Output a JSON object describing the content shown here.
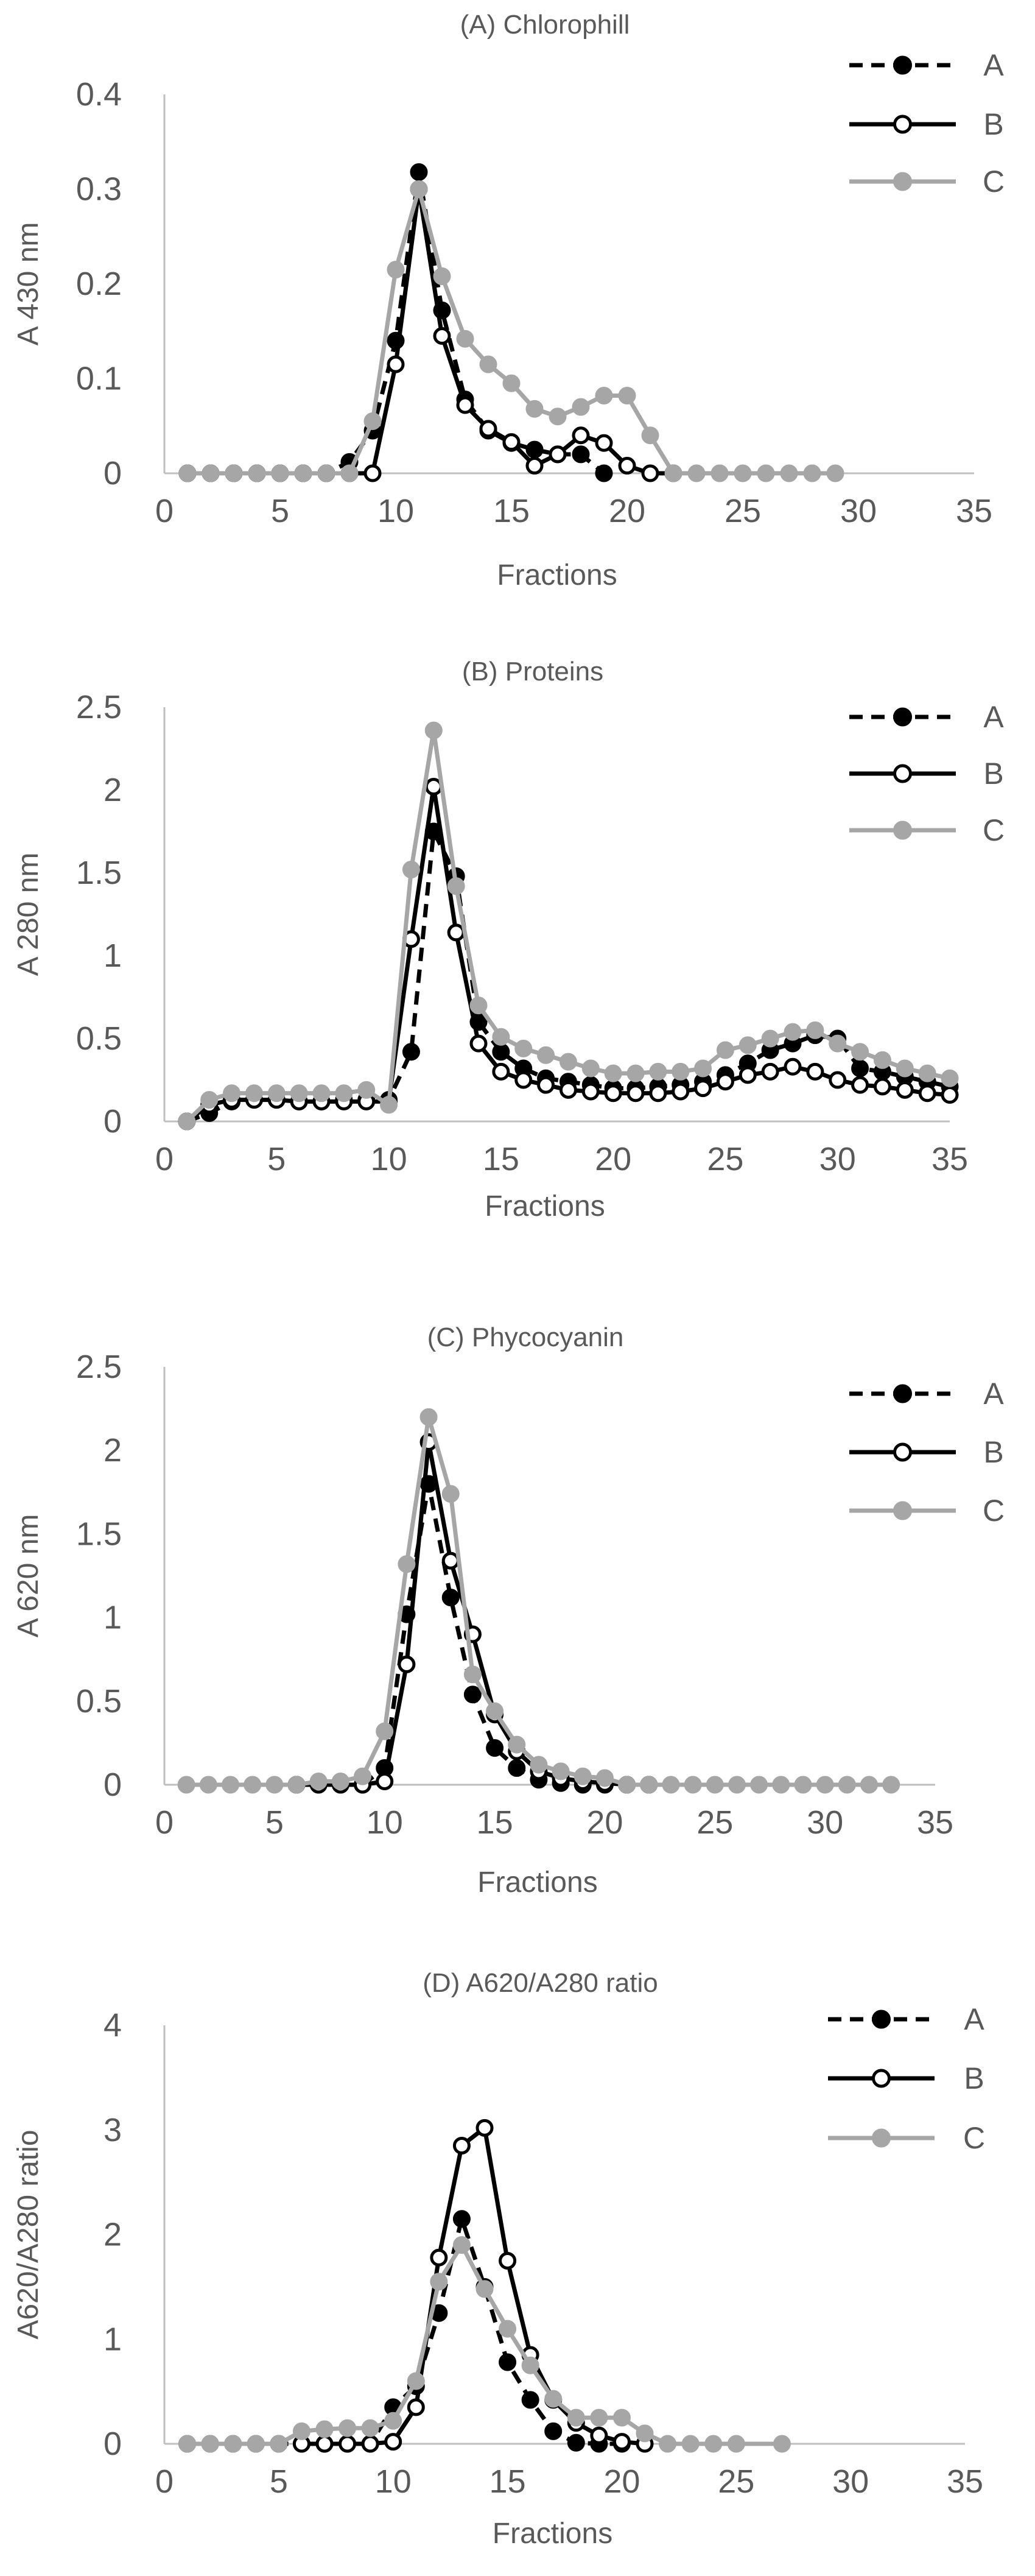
{
  "chart_data": [
    {
      "type": "line",
      "title": "(A) Chlorophill",
      "xlabel": "Fractions",
      "ylabel": "A 430 nm",
      "xlim": [
        0,
        35
      ],
      "ylim": [
        0,
        0.4
      ],
      "x_ticks": [
        "0",
        "5",
        "10",
        "15",
        "20",
        "25",
        "30",
        "35"
      ],
      "y_ticks": [
        "0",
        "0.1",
        "0.2",
        "0.3",
        "0.4"
      ],
      "grid": false,
      "legend_position": "top-right",
      "series": [
        {
          "name": "A",
          "color": "#000000",
          "dash": "dashed",
          "marker": "filled",
          "x": [
            1,
            2,
            3,
            4,
            5,
            6,
            7,
            8,
            9,
            10,
            11,
            12,
            13,
            14,
            15,
            16,
            17,
            18,
            19
          ],
          "y": [
            0,
            0,
            0,
            0,
            0,
            0,
            0,
            0.012,
            0.045,
            0.14,
            0.318,
            0.172,
            0.078,
            0.045,
            0.032,
            0.025,
            0.02,
            0.02,
            0
          ]
        },
        {
          "name": "B",
          "color": "#000000",
          "dash": "solid",
          "marker": "open",
          "x": [
            1,
            2,
            3,
            4,
            5,
            6,
            7,
            8,
            9,
            10,
            11,
            12,
            13,
            14,
            15,
            16,
            17,
            18,
            19,
            20,
            21,
            22
          ],
          "y": [
            0,
            0,
            0,
            0,
            0,
            0,
            0,
            0,
            0,
            0.115,
            0.3,
            0.145,
            0.072,
            0.047,
            0.033,
            0.008,
            0.02,
            0.04,
            0.032,
            0.008,
            0,
            0
          ]
        },
        {
          "name": "C",
          "color": "#a6a6a6",
          "dash": "solid",
          "marker": "filled",
          "x": [
            1,
            2,
            3,
            4,
            5,
            6,
            7,
            8,
            9,
            10,
            11,
            12,
            13,
            14,
            15,
            16,
            17,
            18,
            19,
            20,
            21,
            22,
            23,
            24,
            25,
            26,
            27,
            28,
            29
          ],
          "y": [
            0,
            0,
            0,
            0,
            0,
            0,
            0,
            0,
            0.055,
            0.215,
            0.3,
            0.208,
            0.142,
            0.115,
            0.095,
            0.068,
            0.06,
            0.07,
            0.082,
            0.082,
            0.04,
            0,
            0,
            0,
            0,
            0,
            0,
            0,
            0
          ]
        }
      ]
    },
    {
      "type": "line",
      "title": "(B) Proteins",
      "xlabel": "Fractions",
      "ylabel": "A 280 nm",
      "xlim": [
        0,
        35
      ],
      "ylim": [
        0,
        2.5
      ],
      "x_ticks": [
        "0",
        "5",
        "10",
        "15",
        "20",
        "25",
        "30",
        "35"
      ],
      "y_ticks": [
        "0",
        "0.5",
        "1",
        "1.5",
        "2",
        "2.5"
      ],
      "grid": false,
      "legend_position": "top-right",
      "series": [
        {
          "name": "A",
          "color": "#000000",
          "dash": "dashed",
          "marker": "filled",
          "x": [
            1,
            2,
            3,
            4,
            5,
            6,
            7,
            8,
            9,
            10,
            11,
            12,
            13,
            14,
            15,
            16,
            17,
            18,
            19,
            20,
            21,
            22,
            23,
            24,
            25,
            26,
            27,
            28,
            29,
            30,
            31,
            32,
            33,
            34,
            35
          ],
          "y": [
            0,
            0.05,
            0.12,
            0.13,
            0.13,
            0.12,
            0.12,
            0.13,
            0.13,
            0.13,
            0.42,
            1.75,
            1.48,
            0.6,
            0.42,
            0.32,
            0.26,
            0.24,
            0.22,
            0.2,
            0.2,
            0.21,
            0.22,
            0.24,
            0.28,
            0.35,
            0.43,
            0.47,
            0.52,
            0.5,
            0.32,
            0.3,
            0.27,
            0.24,
            0.21
          ]
        },
        {
          "name": "B",
          "color": "#000000",
          "dash": "solid",
          "marker": "open",
          "x": [
            1,
            2,
            3,
            4,
            5,
            6,
            7,
            8,
            9,
            10,
            11,
            12,
            13,
            14,
            15,
            16,
            17,
            18,
            19,
            20,
            21,
            22,
            23,
            24,
            25,
            26,
            27,
            28,
            29,
            30,
            31,
            32,
            33,
            34,
            35
          ],
          "y": [
            0,
            0.1,
            0.13,
            0.13,
            0.13,
            0.12,
            0.12,
            0.12,
            0.12,
            0.12,
            1.1,
            2.02,
            1.14,
            0.47,
            0.3,
            0.25,
            0.22,
            0.19,
            0.18,
            0.17,
            0.17,
            0.17,
            0.18,
            0.2,
            0.24,
            0.28,
            0.3,
            0.33,
            0.3,
            0.25,
            0.22,
            0.21,
            0.19,
            0.17,
            0.16
          ]
        },
        {
          "name": "C",
          "color": "#a6a6a6",
          "dash": "solid",
          "marker": "filled",
          "x": [
            1,
            2,
            3,
            4,
            5,
            6,
            7,
            8,
            9,
            10,
            11,
            12,
            13,
            14,
            15,
            16,
            17,
            18,
            19,
            20,
            21,
            22,
            23,
            24,
            25,
            26,
            27,
            28,
            29,
            30,
            31,
            32,
            33,
            34,
            35
          ],
          "y": [
            0,
            0.13,
            0.17,
            0.17,
            0.17,
            0.17,
            0.17,
            0.17,
            0.19,
            0.1,
            1.52,
            2.36,
            1.42,
            0.7,
            0.51,
            0.44,
            0.4,
            0.36,
            0.32,
            0.29,
            0.29,
            0.3,
            0.3,
            0.32,
            0.43,
            0.46,
            0.5,
            0.54,
            0.55,
            0.47,
            0.42,
            0.37,
            0.32,
            0.29,
            0.26
          ]
        }
      ]
    },
    {
      "type": "line",
      "title": "(C) Phycocyanin",
      "xlabel": "Fractions",
      "ylabel": "A 620 nm",
      "xlim": [
        0,
        35
      ],
      "ylim": [
        0,
        2.5
      ],
      "x_ticks": [
        "0",
        "5",
        "10",
        "15",
        "20",
        "25",
        "30",
        "35"
      ],
      "y_ticks": [
        "0",
        "0.5",
        "1",
        "1.5",
        "2",
        "2.5"
      ],
      "grid": false,
      "legend_position": "top-right",
      "series": [
        {
          "name": "A",
          "color": "#000000",
          "dash": "dashed",
          "marker": "filled",
          "x": [
            6,
            7,
            8,
            9,
            10,
            11,
            12,
            13,
            14,
            15,
            16,
            17,
            18,
            19,
            20,
            21,
            22
          ],
          "y": [
            0,
            0,
            0,
            0,
            0.1,
            1.02,
            1.8,
            1.12,
            0.54,
            0.22,
            0.1,
            0.03,
            0.01,
            0,
            0,
            0,
            0
          ]
        },
        {
          "name": "B",
          "color": "#000000",
          "dash": "solid",
          "marker": "open",
          "x": [
            6,
            7,
            8,
            9,
            10,
            11,
            12,
            13,
            14,
            15,
            16,
            17,
            18,
            19,
            20,
            21,
            22
          ],
          "y": [
            0,
            0,
            0,
            0,
            0.02,
            0.72,
            2.05,
            1.34,
            0.9,
            0.42,
            0.2,
            0.08,
            0.04,
            0.02,
            0.01,
            0,
            0
          ]
        },
        {
          "name": "C",
          "color": "#a6a6a6",
          "dash": "solid",
          "marker": "filled",
          "x": [
            1,
            2,
            3,
            4,
            5,
            6,
            7,
            8,
            9,
            10,
            11,
            12,
            13,
            14,
            15,
            16,
            17,
            18,
            19,
            20,
            21,
            22,
            23,
            24,
            25,
            26,
            27,
            28,
            29,
            30,
            31,
            32,
            33
          ],
          "y": [
            0,
            0,
            0,
            0,
            0,
            0,
            0.02,
            0.02,
            0.05,
            0.32,
            1.32,
            2.2,
            1.74,
            0.66,
            0.44,
            0.24,
            0.12,
            0.08,
            0.05,
            0.04,
            0,
            0,
            0,
            0,
            0,
            0,
            0,
            0,
            0,
            0,
            0,
            0,
            0
          ]
        }
      ]
    },
    {
      "type": "line",
      "title": "(D) A620/A280 ratio",
      "xlabel": "Fractions",
      "ylabel": "A620/A280 ratio",
      "xlim": [
        0,
        35
      ],
      "ylim": [
        0,
        4
      ],
      "x_ticks": [
        "0",
        "5",
        "10",
        "15",
        "20",
        "25",
        "30",
        "35"
      ],
      "y_ticks": [
        "0",
        "1",
        "2",
        "3",
        "4"
      ],
      "grid": false,
      "legend_position": "top-right",
      "series": [
        {
          "name": "A",
          "color": "#000000",
          "dash": "dashed",
          "marker": "filled",
          "x": [
            1,
            2,
            3,
            4,
            5,
            6,
            7,
            8,
            9,
            10,
            11,
            12,
            13,
            14,
            15,
            16,
            17,
            18,
            19,
            20
          ],
          "y": [
            0,
            0,
            0,
            0,
            0,
            0,
            0,
            0,
            0,
            0.35,
            0.55,
            1.25,
            2.15,
            1.5,
            0.78,
            0.42,
            0.12,
            0.01,
            0,
            0
          ]
        },
        {
          "name": "B",
          "color": "#000000",
          "dash": "solid",
          "marker": "open",
          "x": [
            6,
            7,
            8,
            9,
            10,
            11,
            12,
            13,
            14,
            15,
            16,
            17,
            18,
            19,
            20,
            21
          ],
          "y": [
            0,
            0,
            0,
            0,
            0.02,
            0.35,
            1.78,
            2.85,
            3.02,
            1.75,
            0.85,
            0.42,
            0.2,
            0.08,
            0.02,
            0
          ]
        },
        {
          "name": "C",
          "color": "#a6a6a6",
          "dash": "solid",
          "marker": "filled",
          "x": [
            1,
            2,
            3,
            4,
            5,
            6,
            7,
            8,
            9,
            10,
            11,
            12,
            13,
            14,
            15,
            16,
            17,
            18,
            19,
            20,
            21,
            22,
            23,
            24,
            25,
            27
          ],
          "y": [
            0,
            0,
            0,
            0,
            0,
            0.12,
            0.14,
            0.15,
            0.15,
            0.22,
            0.6,
            1.55,
            1.9,
            1.48,
            1.1,
            0.75,
            0.43,
            0.25,
            0.25,
            0.25,
            0.1,
            0,
            0,
            0,
            0,
            0
          ]
        }
      ]
    }
  ]
}
